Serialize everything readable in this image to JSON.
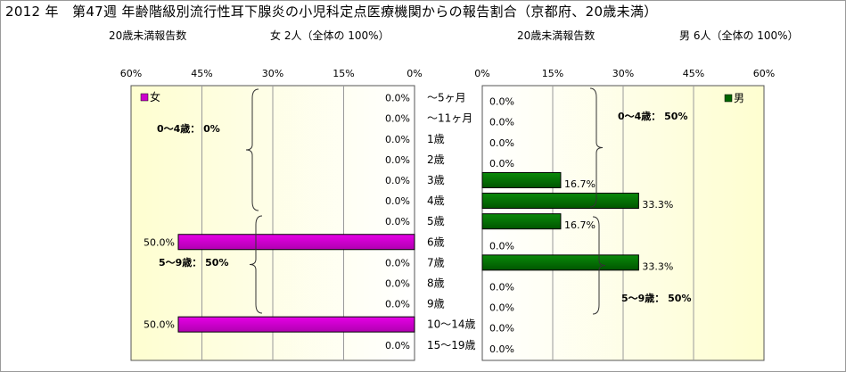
{
  "header": {
    "title": "2012 年　第47週 年齢階級別流行性耳下腺炎の小児科定点医療機関からの報告割合（京都府、20歳未満）",
    "left_sub_label": "20歳未満報告数",
    "left_sub_count": "女 2人（全体の 100%）",
    "right_sub_label": "20歳未満報告数",
    "right_sub_count": "男 6人（全体の 100%）"
  },
  "colors": {
    "female": "#cc00cc",
    "male": "#006600"
  },
  "chart_data": [
    {
      "type": "bar",
      "orientation": "horizontal",
      "direction": "right-to-left",
      "legend": "女",
      "legend_position": "top-left",
      "categories": [
        "～5ヶ月",
        "～11ヶ月",
        "1歳",
        "2歳",
        "3歳",
        "4歳",
        "5歳",
        "6歳",
        "7歳",
        "8歳",
        "9歳",
        "10～14歳",
        "15～19歳"
      ],
      "values": [
        0,
        0,
        0,
        0,
        0,
        0,
        0,
        50,
        0,
        0,
        0,
        50,
        0
      ],
      "value_labels": [
        "0.0%",
        "0.0%",
        "0.0%",
        "0.0%",
        "0.0%",
        "0.0%",
        "0.0%",
        "50.0%",
        "0.0%",
        "0.0%",
        "0.0%",
        "50.0%",
        "0.0%"
      ],
      "xlim": [
        0,
        60
      ],
      "ticks": [
        "60%",
        "45%",
        "30%",
        "15%",
        "0%"
      ],
      "annotations": [
        "0～4歳：  0%",
        "5～9歳：  50%"
      ]
    },
    {
      "type": "bar",
      "orientation": "horizontal",
      "direction": "left-to-right",
      "legend": "男",
      "legend_position": "top-right",
      "categories": [
        "～5ヶ月",
        "～11ヶ月",
        "1歳",
        "2歳",
        "3歳",
        "4歳",
        "5歳",
        "6歳",
        "7歳",
        "8歳",
        "9歳",
        "10～14歳",
        "15～19歳"
      ],
      "values": [
        0,
        0,
        0,
        0,
        16.7,
        33.3,
        16.7,
        0,
        33.3,
        0,
        0,
        0,
        0
      ],
      "value_labels": [
        "0.0%",
        "0.0%",
        "0.0%",
        "0.0%",
        "16.7%",
        "33.3%",
        "16.7%",
        "0.0%",
        "33.3%",
        "0.0%",
        "0.0%",
        "0.0%",
        "0.0%"
      ],
      "xlim": [
        0,
        60
      ],
      "ticks": [
        "0%",
        "15%",
        "30%",
        "45%",
        "60%"
      ],
      "annotations": [
        "0～4歳：  50%",
        "5～9歳：  50%"
      ]
    }
  ]
}
